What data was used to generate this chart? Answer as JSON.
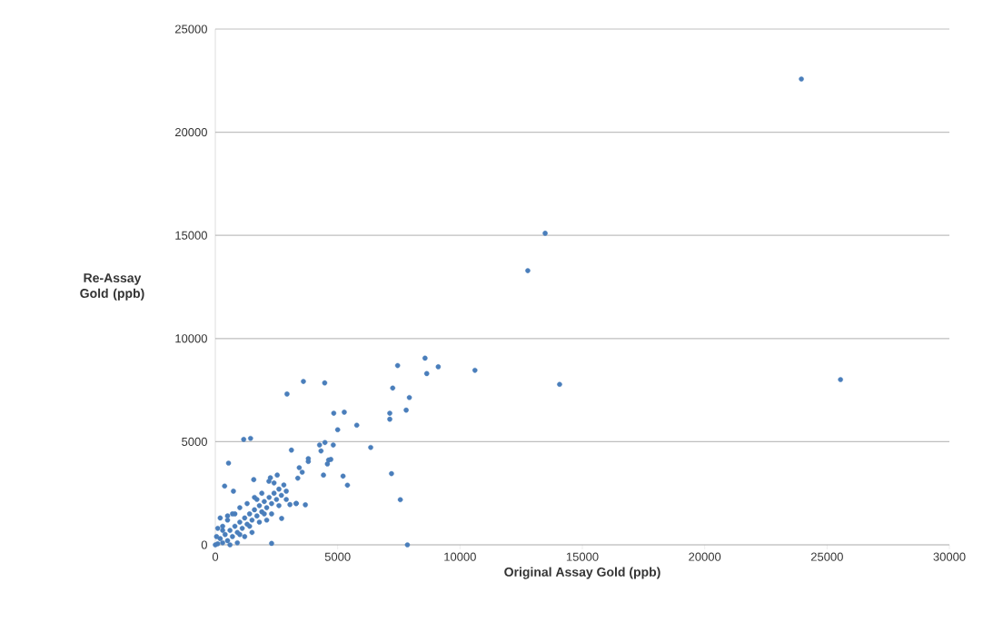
{
  "chart_data": {
    "type": "scatter",
    "xlabel": "Original Assay Gold (ppb)",
    "ylabel": "Re-Assay Gold (ppb)",
    "xlim": [
      0,
      30000
    ],
    "ylim": [
      0,
      25000
    ],
    "xticks": [
      0,
      5000,
      10000,
      15000,
      20000,
      25000,
      30000
    ],
    "yticks": [
      0,
      5000,
      10000,
      15000,
      20000,
      25000
    ],
    "grid": "y",
    "marker": "circle",
    "series": [
      {
        "color": "#4a7ebb",
        "x": [
          23950,
          13480,
          12770,
          25550,
          14070,
          10610,
          8570,
          9110,
          8640,
          7450,
          7930,
          7800,
          7250,
          7130,
          7130,
          6350,
          7200,
          7560,
          7850,
          3600,
          4470,
          2930,
          1160,
          1440,
          5000,
          5780,
          4840,
          5270,
          3110,
          4260,
          4480,
          4820,
          4320,
          3800,
          3800,
          4630,
          4580,
          4720,
          3430,
          3550,
          3370,
          4420,
          5220,
          5400,
          540,
          1570,
          2190,
          380,
          740,
          3680,
          3310,
          2710,
          2300,
          2530,
          0,
          100,
          200,
          300,
          400,
          500,
          600,
          700,
          800,
          900,
          1000,
          1100,
          1200,
          1300,
          1400,
          1500,
          1600,
          1700,
          1800,
          1900,
          2000,
          2100,
          2200,
          2300,
          2400,
          2500,
          2600,
          2700,
          2800,
          2900,
          2400,
          2250,
          1900,
          1600,
          1300,
          1000,
          800,
          500,
          300,
          200,
          500,
          700,
          1400,
          1800,
          2100,
          1200,
          900,
          600,
          300,
          100,
          50,
          1500,
          2000,
          2300,
          2600,
          2900,
          3050,
          3300,
          1000,
          1700
        ],
        "values": [
          22580,
          15100,
          13290,
          8010,
          7780,
          8460,
          9050,
          8630,
          8300,
          8690,
          7140,
          6530,
          7600,
          6380,
          6090,
          4720,
          3450,
          2190,
          0,
          7920,
          7850,
          7310,
          5110,
          5160,
          5580,
          5800,
          6380,
          6430,
          4590,
          4840,
          4960,
          4840,
          4550,
          4180,
          4040,
          4110,
          3920,
          4140,
          3740,
          3520,
          3230,
          3380,
          3330,
          2890,
          3960,
          3160,
          3080,
          2850,
          2600,
          1940,
          2010,
          1280,
          70,
          3380,
          0,
          50,
          300,
          100,
          500,
          200,
          700,
          400,
          900,
          600,
          1100,
          800,
          1300,
          1000,
          1500,
          1200,
          1700,
          1400,
          1900,
          1600,
          2100,
          1800,
          2300,
          2000,
          2500,
          2200,
          2700,
          2400,
          2900,
          2600,
          3000,
          3250,
          2500,
          2300,
          2000,
          1800,
          1500,
          1200,
          900,
          1300,
          1400,
          1500,
          900,
          1100,
          1200,
          400,
          100,
          0,
          700,
          800,
          400,
          600,
          1500,
          1500,
          1900,
          2200,
          1950,
          2000,
          500,
          2200
        ]
      }
    ]
  }
}
